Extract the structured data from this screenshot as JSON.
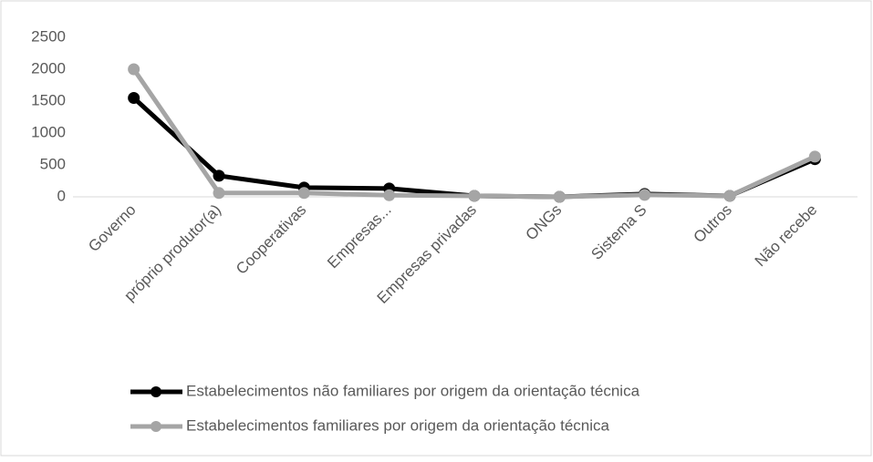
{
  "chart_data": {
    "type": "line",
    "categories": [
      "Governo",
      "próprio produtor(a)",
      "Cooperativas",
      "Empresas...",
      "Empresas privadas",
      "ONGs",
      "Sistema S",
      "Outros",
      "Não recebe"
    ],
    "series": [
      {
        "name": "Estabelecimentos não familiares por origem da orientação técnica",
        "color": "#000000",
        "values": [
          1550,
          330,
          145,
          130,
          15,
          0,
          45,
          15,
          590
        ]
      },
      {
        "name": "Estabelecimentos familiares por origem da orientação técnica",
        "color": "#a5a5a5",
        "values": [
          2000,
          60,
          60,
          25,
          15,
          0,
          30,
          15,
          630
        ]
      }
    ],
    "ylim": [
      0,
      2500
    ],
    "yticks": [
      0,
      500,
      1000,
      1500,
      2000,
      2500
    ],
    "grid": false,
    "legend": "bottom"
  }
}
